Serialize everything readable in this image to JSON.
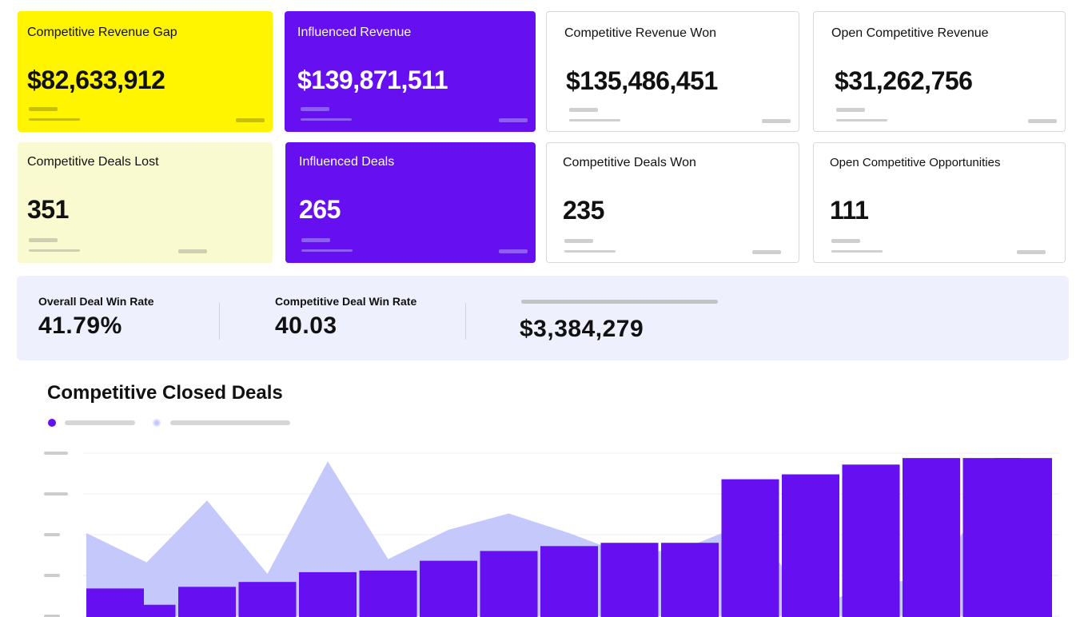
{
  "cards": [
    {
      "label": "Competitive Revenue Gap",
      "value": "$82,633,912"
    },
    {
      "label": "Influenced Revenue",
      "value": "$139,871,511"
    },
    {
      "label": "Competitive Revenue Won",
      "value": "$135,486,451"
    },
    {
      "label": "Open Competitive Revenue",
      "value": "$31,262,756"
    },
    {
      "label": "Competitive Deals Lost",
      "value": "351"
    },
    {
      "label": "Influenced Deals",
      "value": "265"
    },
    {
      "label": "Competitive Deals Won",
      "value": "235"
    },
    {
      "label": "Open Competitive Opportunities",
      "value": "111"
    }
  ],
  "stats": {
    "overall_label": "Overall Deal Win Rate",
    "overall_value": "41.79%",
    "competitive_label": "Competitive Deal Win Rate",
    "competitive_value": "40.03",
    "third_value": "$3,384,279"
  },
  "chart": {
    "title": "Competitive Closed Deals"
  },
  "colors": {
    "yellow": "#fff500",
    "light_yellow": "#fafad0",
    "purple": "#6610f2",
    "area": "#c5c8fb"
  },
  "chart_data": {
    "type": "bar",
    "title": "Competitive Closed Deals",
    "ylim": [
      0,
      100
    ],
    "grid": true,
    "legend": "top-left",
    "series": [
      {
        "values": [
          17,
          7,
          18,
          21,
          27,
          28,
          34,
          40,
          43,
          45,
          45,
          84,
          87,
          93,
          97,
          97,
          97
        ]
      },
      {
        "values": [
          51,
          33,
          71,
          26,
          95,
          35,
          53,
          63,
          51,
          37,
          43,
          58,
          6,
          18,
          25,
          75,
          34
        ]
      }
    ]
  }
}
